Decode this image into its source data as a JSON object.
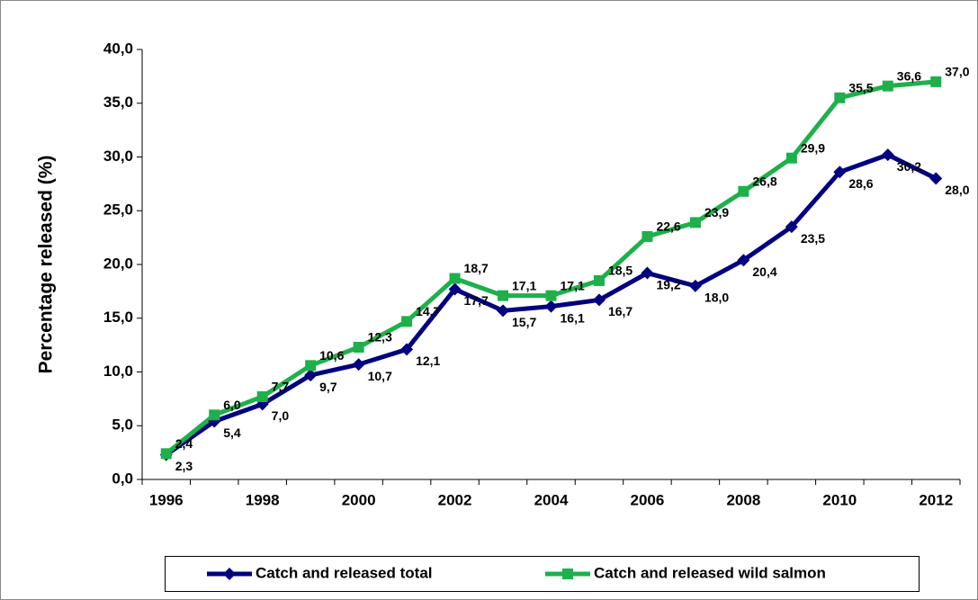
{
  "chart_data": {
    "type": "line",
    "y_label": "Percentage released (%)",
    "categories": [
      "1996",
      null,
      "1998",
      null,
      "2000",
      null,
      "2002",
      null,
      "2004",
      null,
      "2006",
      null,
      "2008",
      null,
      "2010",
      null,
      "2012"
    ],
    "series": [
      {
        "name": "Catch and released total",
        "color": "#000080",
        "marker": "diamond",
        "values": [
          2.3,
          5.4,
          7.0,
          9.7,
          10.7,
          12.1,
          17.7,
          15.7,
          16.1,
          16.7,
          19.2,
          18.0,
          20.4,
          23.5,
          28.6,
          30.2,
          28.0
        ],
        "value_labels": [
          "2,3",
          "5,4",
          "7,0",
          "9,7",
          "10,7",
          "12,1",
          "17,7",
          "15,7",
          "16,1",
          "16,7",
          "19,2",
          "18,0",
          "20,4",
          "23,5",
          "28,6",
          "30,2",
          "28,0"
        ]
      },
      {
        "name": "Catch and released wild salmon",
        "color": "#1db04b",
        "marker": "square",
        "values": [
          2.4,
          6.0,
          7.7,
          10.6,
          12.3,
          14.7,
          18.7,
          17.1,
          17.1,
          18.5,
          22.6,
          23.9,
          26.8,
          29.9,
          35.5,
          36.6,
          37.0
        ],
        "value_labels": [
          "2,4",
          "6,0",
          "7,7",
          "10,6",
          "12,3",
          "14,7",
          "18,7",
          "17,1",
          "17,1",
          "18,5",
          "22,6",
          "23,9",
          "26,8",
          "29,9",
          "35,5",
          "36,6",
          "37,0"
        ]
      }
    ],
    "ylim": [
      0,
      40
    ],
    "yticks": [
      {
        "value": 0,
        "label": "0,0"
      },
      {
        "value": 5,
        "label": "5,0"
      },
      {
        "value": 10,
        "label": "10,0"
      },
      {
        "value": 15,
        "label": "15,0"
      },
      {
        "value": 20,
        "label": "20,0"
      },
      {
        "value": 25,
        "label": "25,0"
      },
      {
        "value": 30,
        "label": "30,0"
      },
      {
        "value": 35,
        "label": "35,0"
      },
      {
        "value": 40,
        "label": "40,0"
      }
    ],
    "grid": false,
    "legend": "bottom"
  }
}
